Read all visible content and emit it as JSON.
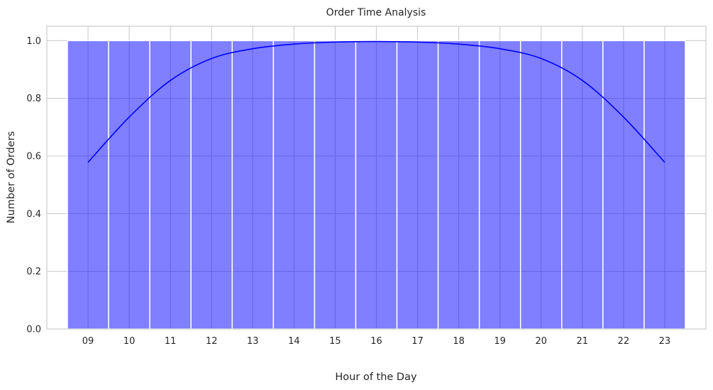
{
  "chart_data": {
    "type": "bar",
    "title": "Order Time Analysis",
    "xlabel": "Hour of the Day",
    "ylabel": "Number of Orders",
    "categories": [
      "09",
      "10",
      "11",
      "12",
      "13",
      "14",
      "15",
      "16",
      "17",
      "18",
      "19",
      "20",
      "21",
      "22",
      "23"
    ],
    "values": [
      1,
      1,
      1,
      1,
      1,
      1,
      1,
      1,
      1,
      1,
      1,
      1,
      1,
      1,
      1
    ],
    "ylim": [
      0,
      1.05
    ],
    "yticks": [
      0.0,
      0.2,
      0.4,
      0.6,
      0.8,
      1.0
    ],
    "ytick_labels": [
      "0.0",
      "0.2",
      "0.4",
      "0.6",
      "0.8",
      "1.0"
    ],
    "grid": true,
    "bar_color": "#0000ff",
    "bar_opacity": 0.5,
    "kde": {
      "color": "#0000ff",
      "x": [
        9,
        10,
        11,
        12,
        13,
        14,
        15,
        16,
        17,
        18,
        19,
        20,
        21,
        22,
        23
      ],
      "y": [
        0.578,
        0.735,
        0.862,
        0.938,
        0.972,
        0.988,
        0.995,
        0.997,
        0.995,
        0.988,
        0.972,
        0.938,
        0.862,
        0.735,
        0.578
      ]
    }
  }
}
